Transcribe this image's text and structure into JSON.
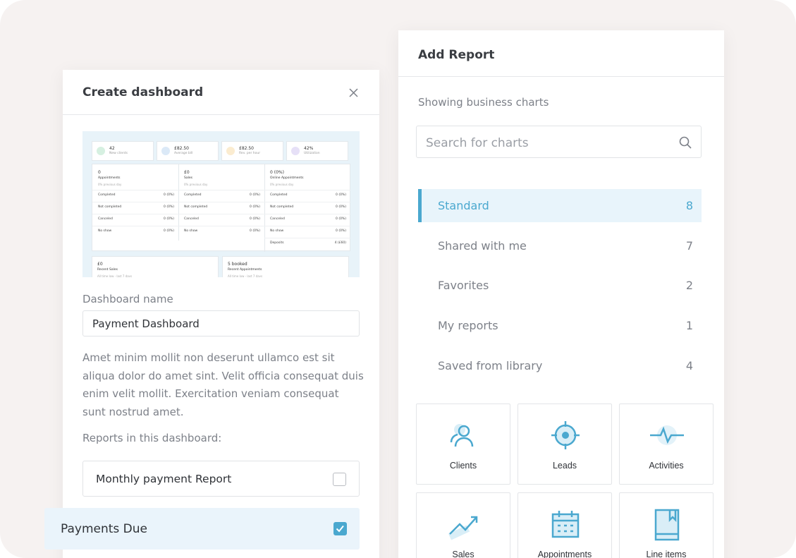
{
  "left_panel": {
    "title": "Create dashboard",
    "preview": {
      "stats": [
        {
          "value": "42",
          "label": "New clients"
        },
        {
          "value": "£82.50",
          "label": "Average bill"
        },
        {
          "value": "£82.50",
          "label": "Rev. per hour"
        },
        {
          "value": "42%",
          "label": "Utilization"
        }
      ],
      "columns": [
        {
          "value": "0",
          "title": "Appointments",
          "sub": "0% previous day",
          "rows": [
            {
              "label": "Completed",
              "value": "0 (0%)"
            },
            {
              "label": "Not completed",
              "value": "0 (0%)"
            },
            {
              "label": "Canceled",
              "value": "0 (0%)"
            },
            {
              "label": "No show",
              "value": "0 (0%)"
            }
          ]
        },
        {
          "value": "£0",
          "title": "Sales",
          "sub": "0% previous day",
          "rows": [
            {
              "label": "Completed",
              "value": "0 (0%)"
            },
            {
              "label": "Not completed",
              "value": "0 (0%)"
            },
            {
              "label": "Canceled",
              "value": "0 (0%)"
            },
            {
              "label": "No show",
              "value": "0 (0%)"
            }
          ]
        },
        {
          "value": "0 (0%)",
          "title": "Online Appointments",
          "sub": "0% previous day",
          "rows": [
            {
              "label": "Completed",
              "value": "0 (0%)"
            },
            {
              "label": "Not completed",
              "value": "0 (0%)"
            },
            {
              "label": "Canceled",
              "value": "0 (0%)"
            },
            {
              "label": "No show",
              "value": "0 (0%)"
            },
            {
              "label": "Deposits",
              "value": "4 (£60)"
            }
          ]
        }
      ],
      "bottom": [
        {
          "value": "£0",
          "title": "Recent Sales",
          "sub": "All time low - last 7 days"
        },
        {
          "value": "5 booked",
          "title": "Recent Appointments",
          "sub": "All time low - last 7 days"
        }
      ]
    },
    "name_label": "Dashboard name",
    "name_value": "Payment Dashboard",
    "description": "Amet minim mollit non deserunt ullamco est sit aliqua dolor do amet sint. Velit officia consequat duis enim velit mollit. Exercitation veniam consequat sunt nostrud amet.",
    "reports_label": "Reports in this dashboard:",
    "reports": [
      {
        "name": "Monthly payment Report",
        "checked": false
      },
      {
        "name": "Payments Due",
        "checked": true
      }
    ]
  },
  "right_panel": {
    "title": "Add Report",
    "subtitle": "Showing business charts",
    "search_placeholder": "Search for charts",
    "categories": [
      {
        "name": "Standard",
        "count": 8,
        "selected": true
      },
      {
        "name": "Shared with me",
        "count": 7,
        "selected": false
      },
      {
        "name": "Favorites",
        "count": 2,
        "selected": false
      },
      {
        "name": "My reports",
        "count": 1,
        "selected": false
      },
      {
        "name": "Saved from library",
        "count": 4,
        "selected": false
      }
    ],
    "tiles": [
      "Clients",
      "Leads",
      "Activities",
      "Sales",
      "Appointments",
      "Line items"
    ]
  }
}
